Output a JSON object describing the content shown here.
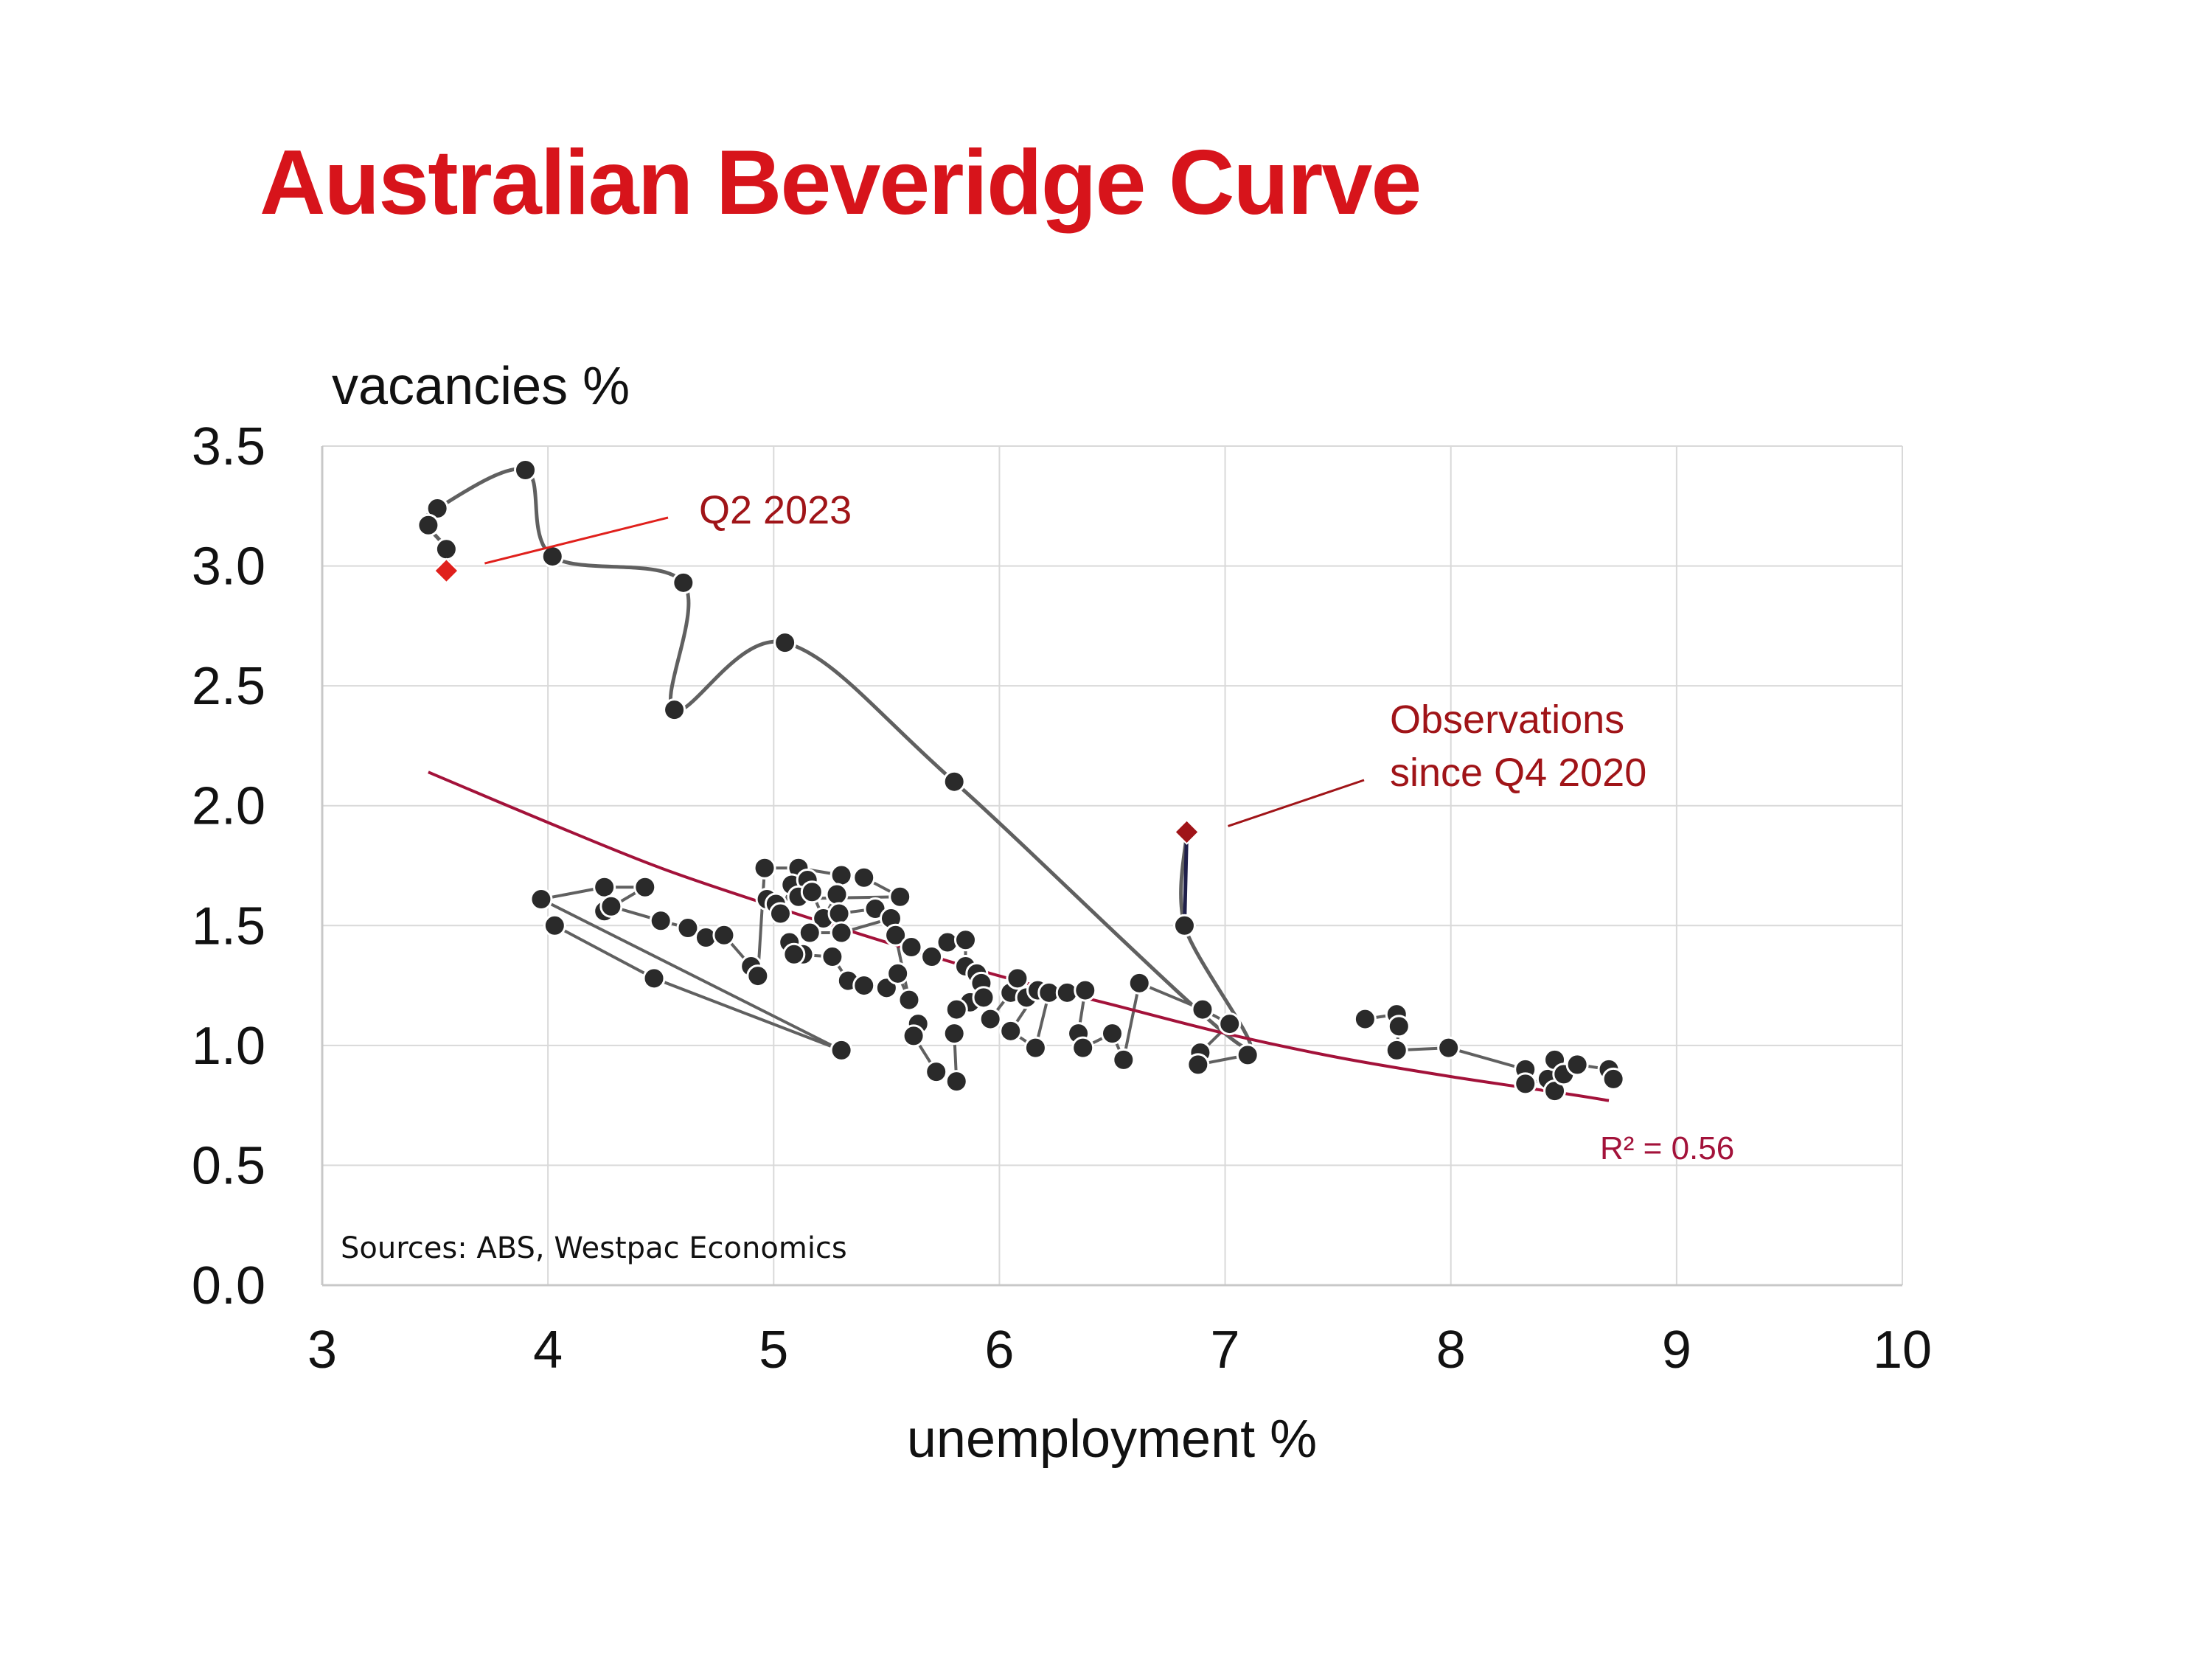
{
  "chart_data": {
    "type": "scatter",
    "title": "Australian Beveridge Curve",
    "xlabel": "unemployment %",
    "ylabel": "vacancies %",
    "xlim": [
      3,
      10
    ],
    "ylim": [
      0,
      3.5
    ],
    "x_ticks": [
      "3",
      "4",
      "5",
      "6",
      "7",
      "8",
      "9",
      "10"
    ],
    "y_ticks": [
      "0.0",
      "0.5",
      "1.0",
      "1.5",
      "2.0",
      "2.5",
      "3.0",
      "3.5"
    ],
    "grid": true,
    "source": "Sources: ABS, Westpac Economics",
    "colors": {
      "title": "#d7141b",
      "points": "#2a2a2a",
      "path": "#606060",
      "recent_path": "#1f1f4a",
      "trend": "#a3123a",
      "q2_marker": "#e0201c",
      "q4_marker": "#a01418",
      "annotation": "#a01418",
      "grid": "#d9d9d9"
    },
    "trend": {
      "label": "R² = 0.56",
      "points": [
        [
          3.47,
          2.14
        ],
        [
          4.0,
          1.93
        ],
        [
          4.5,
          1.74
        ],
        [
          5.0,
          1.58
        ],
        [
          5.5,
          1.43
        ],
        [
          6.0,
          1.29
        ],
        [
          6.5,
          1.17
        ],
        [
          7.0,
          1.05
        ],
        [
          7.5,
          0.95
        ],
        [
          8.0,
          0.87
        ],
        [
          8.5,
          0.8
        ],
        [
          8.7,
          0.77
        ]
      ]
    },
    "series": [
      {
        "points": [
          [
            4.03,
            1.5
          ],
          [
            4.47,
            1.28
          ],
          [
            5.3,
            0.98
          ],
          [
            3.97,
            1.61
          ],
          [
            4.25,
            1.66
          ],
          [
            4.43,
            1.66
          ],
          [
            4.25,
            1.56
          ],
          [
            4.28,
            1.58
          ],
          [
            4.5,
            1.52
          ],
          [
            4.62,
            1.49
          ],
          [
            4.7,
            1.45
          ],
          [
            4.78,
            1.46
          ],
          [
            4.9,
            1.33
          ],
          [
            4.93,
            1.29
          ],
          [
            4.96,
            1.74
          ],
          [
            5.11,
            1.74
          ],
          [
            5.3,
            1.71
          ],
          [
            5.4,
            1.7
          ],
          [
            5.56,
            1.62
          ],
          [
            4.97,
            1.61
          ],
          [
            5.01,
            1.59
          ],
          [
            5.03,
            1.55
          ],
          [
            5.08,
            1.67
          ],
          [
            5.15,
            1.69
          ],
          [
            5.11,
            1.62
          ],
          [
            5.17,
            1.64
          ],
          [
            5.22,
            1.53
          ],
          [
            5.28,
            1.63
          ],
          [
            5.29,
            1.55
          ],
          [
            5.45,
            1.57
          ],
          [
            5.52,
            1.53
          ],
          [
            5.3,
            1.47
          ],
          [
            5.16,
            1.47
          ],
          [
            5.07,
            1.43
          ],
          [
            5.13,
            1.38
          ],
          [
            5.09,
            1.38
          ],
          [
            5.26,
            1.37
          ],
          [
            5.33,
            1.27
          ],
          [
            5.4,
            1.25
          ],
          [
            5.5,
            1.24
          ],
          [
            5.55,
            1.3
          ],
          [
            5.6,
            1.19
          ],
          [
            5.54,
            1.46
          ],
          [
            5.61,
            1.41
          ],
          [
            5.7,
            1.37
          ],
          [
            5.77,
            1.43
          ],
          [
            5.85,
            1.44
          ],
          [
            5.85,
            1.33
          ],
          [
            5.9,
            1.3
          ],
          [
            5.92,
            1.26
          ],
          [
            5.87,
            1.18
          ],
          [
            5.81,
            1.15
          ],
          [
            5.93,
            1.2
          ],
          [
            5.96,
            1.11
          ],
          [
            6.05,
            1.22
          ],
          [
            6.08,
            1.28
          ],
          [
            6.12,
            1.2
          ],
          [
            6.17,
            1.23
          ],
          [
            6.05,
            1.06
          ],
          [
            6.16,
            0.99
          ],
          [
            6.22,
            1.22
          ],
          [
            6.3,
            1.22
          ],
          [
            6.38,
            1.23
          ],
          [
            6.35,
            1.05
          ],
          [
            6.37,
            0.99
          ],
          [
            6.5,
            1.05
          ],
          [
            6.55,
            0.94
          ],
          [
            6.62,
            1.26
          ],
          [
            6.9,
            1.15
          ],
          [
            7.02,
            1.09
          ],
          [
            6.89,
            0.97
          ],
          [
            6.88,
            0.92
          ],
          [
            7.1,
            0.96
          ],
          [
            5.64,
            1.09
          ],
          [
            5.62,
            1.04
          ],
          [
            5.72,
            0.89
          ],
          [
            5.81,
            0.85
          ],
          [
            5.8,
            1.05
          ],
          [
            7.62,
            1.11
          ],
          [
            7.76,
            1.13
          ],
          [
            7.77,
            1.08
          ],
          [
            7.76,
            0.98
          ],
          [
            7.99,
            0.99
          ],
          [
            8.33,
            0.9
          ],
          [
            8.33,
            0.84
          ],
          [
            8.43,
            0.86
          ],
          [
            8.46,
            0.94
          ],
          [
            8.46,
            0.81
          ],
          [
            8.5,
            0.88
          ],
          [
            8.56,
            0.92
          ],
          [
            8.7,
            0.9
          ],
          [
            8.72,
            0.86
          ]
        ]
      },
      {
        "points": [
          [
            6.82,
            1.5
          ],
          [
            3.9,
            3.4
          ],
          [
            3.51,
            3.24
          ],
          [
            3.47,
            3.17
          ],
          [
            3.55,
            3.07
          ],
          [
            4.02,
            3.04
          ],
          [
            4.6,
            2.93
          ],
          [
            4.56,
            2.4
          ],
          [
            5.05,
            2.68
          ],
          [
            5.8,
            2.1
          ]
        ]
      }
    ],
    "path_observations_since_q4_2020": [
      [
        6.83,
        1.89
      ],
      [
        6.82,
        1.5
      ],
      [
        7.07,
        1.0
      ],
      [
        5.8,
        2.1
      ],
      [
        5.05,
        2.68
      ],
      [
        4.56,
        2.4
      ],
      [
        4.6,
        2.93
      ],
      [
        4.02,
        3.04
      ],
      [
        3.9,
        3.4
      ],
      [
        3.51,
        3.24
      ],
      [
        3.47,
        3.17
      ],
      [
        3.55,
        3.07
      ],
      [
        3.55,
        2.98
      ]
    ],
    "annotations": [
      {
        "label": "Q2 2023",
        "point": [
          3.55,
          2.98
        ]
      },
      {
        "label": "Observations since Q4 2020",
        "lines": [
          "Observations",
          "since Q4 2020"
        ],
        "point": [
          6.83,
          1.89
        ]
      }
    ]
  }
}
